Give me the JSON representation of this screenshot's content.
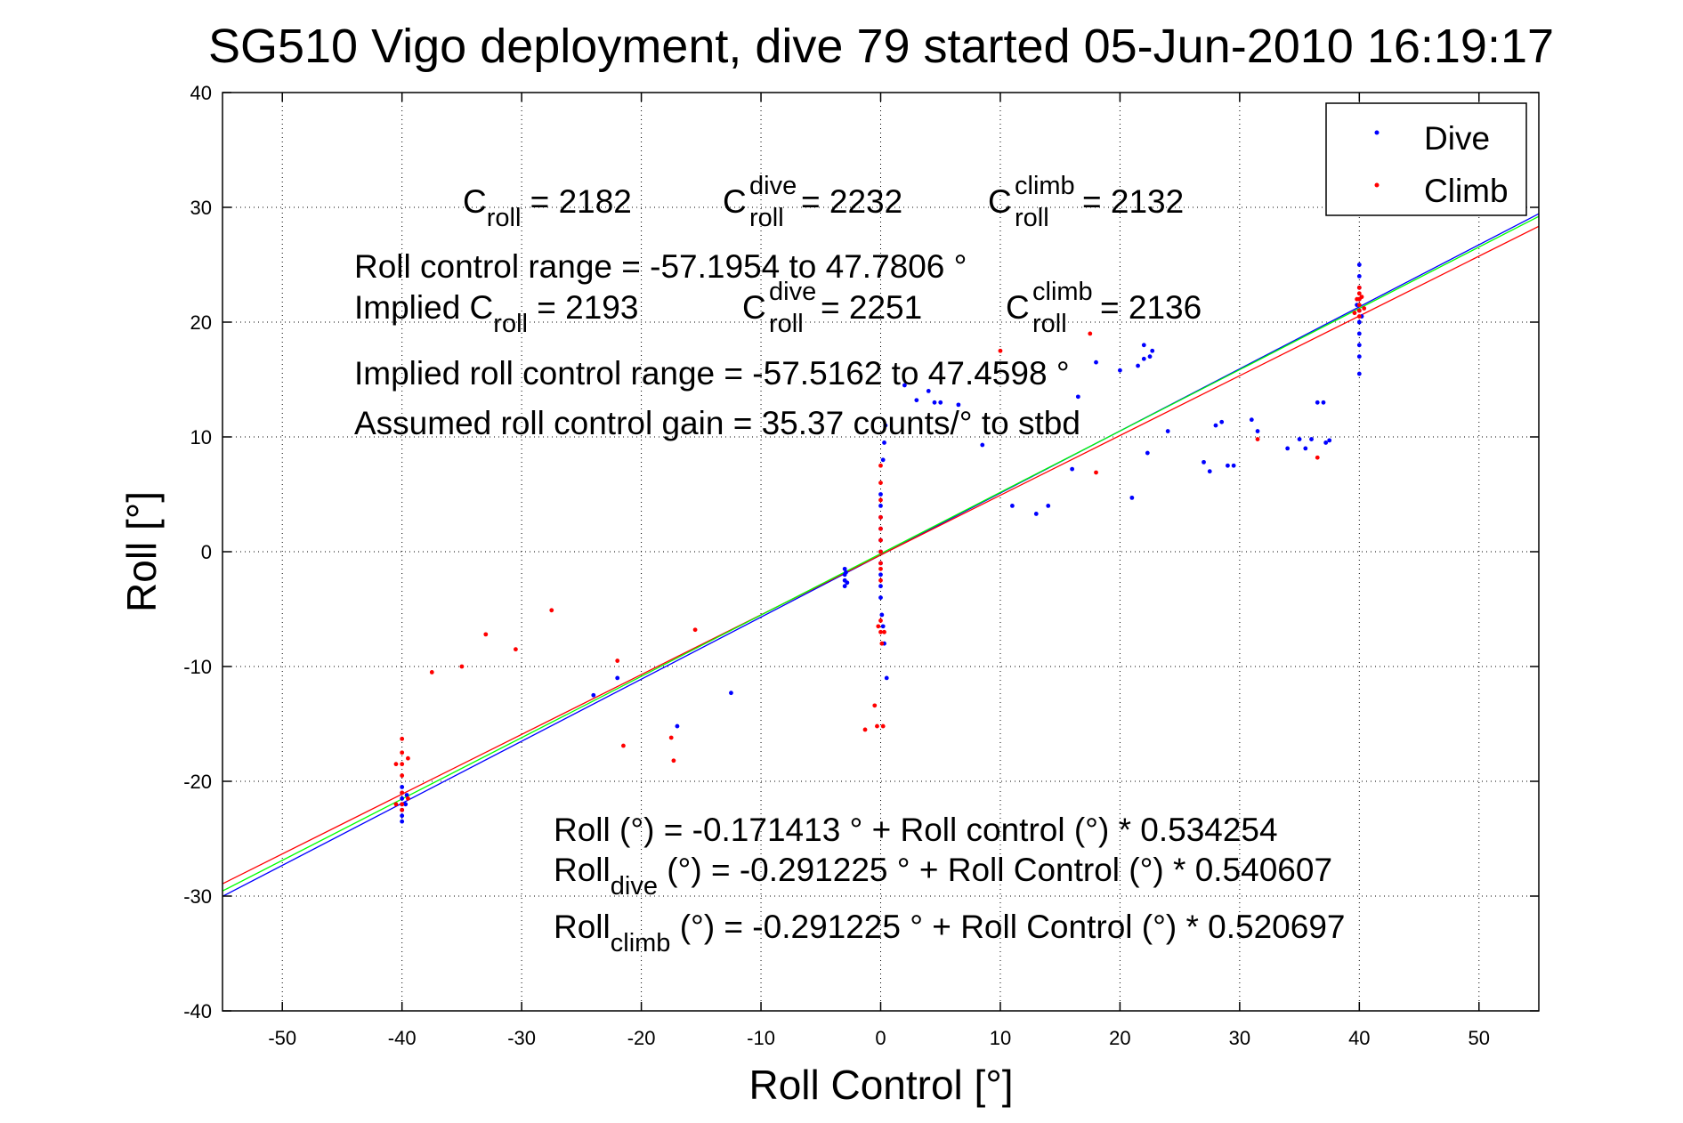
{
  "chart_data": {
    "type": "scatter",
    "title": "SG510 Vigo deployment, dive 79 started 05-Jun-2010 16:19:17",
    "xlabel": "Roll Control [°]",
    "ylabel": "Roll [°]",
    "xlim": [
      -55,
      55
    ],
    "ylim": [
      -40,
      40
    ],
    "xticks": [
      -50,
      -40,
      -30,
      -20,
      -10,
      0,
      10,
      20,
      30,
      40,
      50
    ],
    "yticks": [
      -40,
      -30,
      -20,
      -10,
      0,
      10,
      20,
      30,
      40
    ],
    "grid": true,
    "legend_position": "top-right",
    "legend": [
      {
        "label": "Dive",
        "color": "#0000ff"
      },
      {
        "label": "Climb",
        "color": "#ff0000"
      }
    ],
    "series": [
      {
        "name": "Dive",
        "color": "#0000ff",
        "points": [
          [
            -40,
            -20.5
          ],
          [
            -40,
            -21
          ],
          [
            -40,
            -21.5
          ],
          [
            -40,
            -22
          ],
          [
            -40,
            -22.5
          ],
          [
            -40,
            -23
          ],
          [
            -40,
            -23.5
          ],
          [
            -39.7,
            -22
          ],
          [
            -39.6,
            -21.2
          ],
          [
            -3,
            -1.5
          ],
          [
            -3,
            -2
          ],
          [
            -3,
            -2.5
          ],
          [
            -3,
            -3
          ],
          [
            -2.9,
            -1.8
          ],
          [
            -2.8,
            -2.7
          ],
          [
            0,
            5
          ],
          [
            0,
            4
          ],
          [
            0,
            3
          ],
          [
            0,
            2
          ],
          [
            0,
            1
          ],
          [
            0,
            0
          ],
          [
            0,
            -1
          ],
          [
            0,
            -2
          ],
          [
            0,
            -3
          ],
          [
            0,
            -4
          ],
          [
            0.2,
            8
          ],
          [
            0.3,
            9.5
          ],
          [
            0.4,
            11
          ],
          [
            0.1,
            -5.5
          ],
          [
            0.2,
            -6.5
          ],
          [
            0.3,
            -8
          ],
          [
            0.5,
            -11
          ],
          [
            2,
            14.5
          ],
          [
            3,
            13.2
          ],
          [
            4,
            14
          ],
          [
            4.5,
            13
          ],
          [
            5,
            13
          ],
          [
            6.5,
            12.8
          ],
          [
            8.5,
            9.3
          ],
          [
            11,
            4
          ],
          [
            13,
            3.3
          ],
          [
            14,
            4
          ],
          [
            16,
            7.2
          ],
          [
            16.5,
            13.5
          ],
          [
            18,
            16.5
          ],
          [
            20,
            15.8
          ],
          [
            21,
            4.7
          ],
          [
            21.5,
            16.2
          ],
          [
            22,
            16.8
          ],
          [
            22,
            18
          ],
          [
            22.3,
            8.6
          ],
          [
            22.5,
            17
          ],
          [
            22.7,
            17.5
          ],
          [
            24,
            10.5
          ],
          [
            27,
            7.8
          ],
          [
            27.5,
            7
          ],
          [
            28,
            11
          ],
          [
            28.5,
            11.3
          ],
          [
            29,
            7.5
          ],
          [
            29.5,
            7.5
          ],
          [
            31,
            11.5
          ],
          [
            31.5,
            10.5
          ],
          [
            34,
            9
          ],
          [
            35,
            9.8
          ],
          [
            35.5,
            9
          ],
          [
            36,
            9.8
          ],
          [
            36.5,
            13
          ],
          [
            37,
            13
          ],
          [
            37.2,
            9.5
          ],
          [
            37.5,
            9.7
          ],
          [
            40,
            25
          ],
          [
            40,
            24
          ],
          [
            40,
            23
          ],
          [
            40,
            22
          ],
          [
            40,
            21
          ],
          [
            40,
            20
          ],
          [
            40,
            19
          ],
          [
            40,
            18
          ],
          [
            40,
            17
          ],
          [
            40,
            15.5
          ],
          [
            39.8,
            21.5
          ],
          [
            40.2,
            20.5
          ],
          [
            -24,
            -12.5
          ],
          [
            -22,
            -11
          ],
          [
            -17,
            -15.2
          ],
          [
            -12.5,
            -12.3
          ]
        ]
      },
      {
        "name": "Climb",
        "color": "#ff0000",
        "points": [
          [
            -40,
            -16.3
          ],
          [
            -40,
            -17.5
          ],
          [
            -40,
            -18.5
          ],
          [
            -40,
            -19.5
          ],
          [
            -40,
            -21
          ],
          [
            -40,
            -22
          ],
          [
            -40,
            -22.5
          ],
          [
            -39.5,
            -18
          ],
          [
            -39.5,
            -21.5
          ],
          [
            -40.5,
            -18.5
          ],
          [
            -40.5,
            -22
          ],
          [
            -37.5,
            -10.5
          ],
          [
            -35,
            -10
          ],
          [
            -33,
            -7.2
          ],
          [
            -30.5,
            -8.5
          ],
          [
            -27.5,
            -5.1
          ],
          [
            -22,
            -9.5
          ],
          [
            -21.5,
            -16.9
          ],
          [
            -17.5,
            -16.2
          ],
          [
            -17.3,
            -18.2
          ],
          [
            -15.5,
            -6.8
          ],
          [
            -1.3,
            -15.5
          ],
          [
            -0.5,
            -13.4
          ],
          [
            -0.3,
            -15.2
          ],
          [
            0.2,
            -15.2
          ],
          [
            0,
            7.5
          ],
          [
            0,
            6
          ],
          [
            0,
            4.5
          ],
          [
            0,
            3
          ],
          [
            0,
            2
          ],
          [
            0,
            1
          ],
          [
            0,
            0
          ],
          [
            0,
            -1
          ],
          [
            0,
            -1.5
          ],
          [
            0,
            -2.5
          ],
          [
            0,
            -6
          ],
          [
            0,
            -7
          ],
          [
            0.1,
            -8
          ],
          [
            0.3,
            -7
          ],
          [
            -0.2,
            -6.5
          ],
          [
            10,
            17.5
          ],
          [
            17.5,
            19
          ],
          [
            18,
            6.9
          ],
          [
            31.5,
            9.8
          ],
          [
            36.5,
            8.2
          ],
          [
            40,
            23
          ],
          [
            40,
            22.5
          ],
          [
            40,
            22
          ],
          [
            40,
            21.5
          ],
          [
            40,
            21
          ],
          [
            40,
            20.5
          ],
          [
            39.8,
            22
          ],
          [
            40.2,
            22.2
          ],
          [
            40.4,
            21.2
          ],
          [
            39.6,
            20.8
          ]
        ]
      }
    ],
    "fit_lines": [
      {
        "color": "#0000ff",
        "intercept": -0.291225,
        "slope": 0.540607
      },
      {
        "color": "#ff0000",
        "intercept": -0.291225,
        "slope": 0.520697
      },
      {
        "color": "#00ff00",
        "intercept": -0.171413,
        "slope": 0.534254
      }
    ],
    "annotations": {
      "croll": {
        "base": "C",
        "sub": "roll",
        "value": " = 2182"
      },
      "croll_dive": {
        "base": "C",
        "sup": "dive",
        "sub": "roll",
        "value": " = 2232"
      },
      "croll_climb": {
        "base": "C",
        "sup": "climb",
        "sub": "roll",
        "value": " = 2132"
      },
      "range": "Roll control range = -57.1954 to 47.7806 °",
      "implied_prefix": "Implied C",
      "implied_sub": "roll",
      "implied_value": " = 2193",
      "implied_dive": {
        "base": "C",
        "sup": "dive",
        "sub": "roll",
        "value": " = 2251"
      },
      "implied_climb": {
        "base": "C",
        "sup": "climb",
        "sub": "roll",
        "value": " = 2136"
      },
      "implied_range": "Implied roll control range = -57.5162 to 47.4598 °",
      "gain": "Assumed roll control gain = 35.37 counts/° to stbd",
      "fit_all": "Roll (°) = -0.171413 ° + Roll control (°) * 0.534254",
      "fit_dive_base": "Roll",
      "fit_dive_sub": "dive",
      "fit_dive_rest": " (°) = -0.291225 ° + Roll Control (°) * 0.540607",
      "fit_climb_base": "Roll",
      "fit_climb_sub": "climb",
      "fit_climb_rest": " (°) = -0.291225 ° + Roll Control (°) * 0.520697"
    }
  }
}
